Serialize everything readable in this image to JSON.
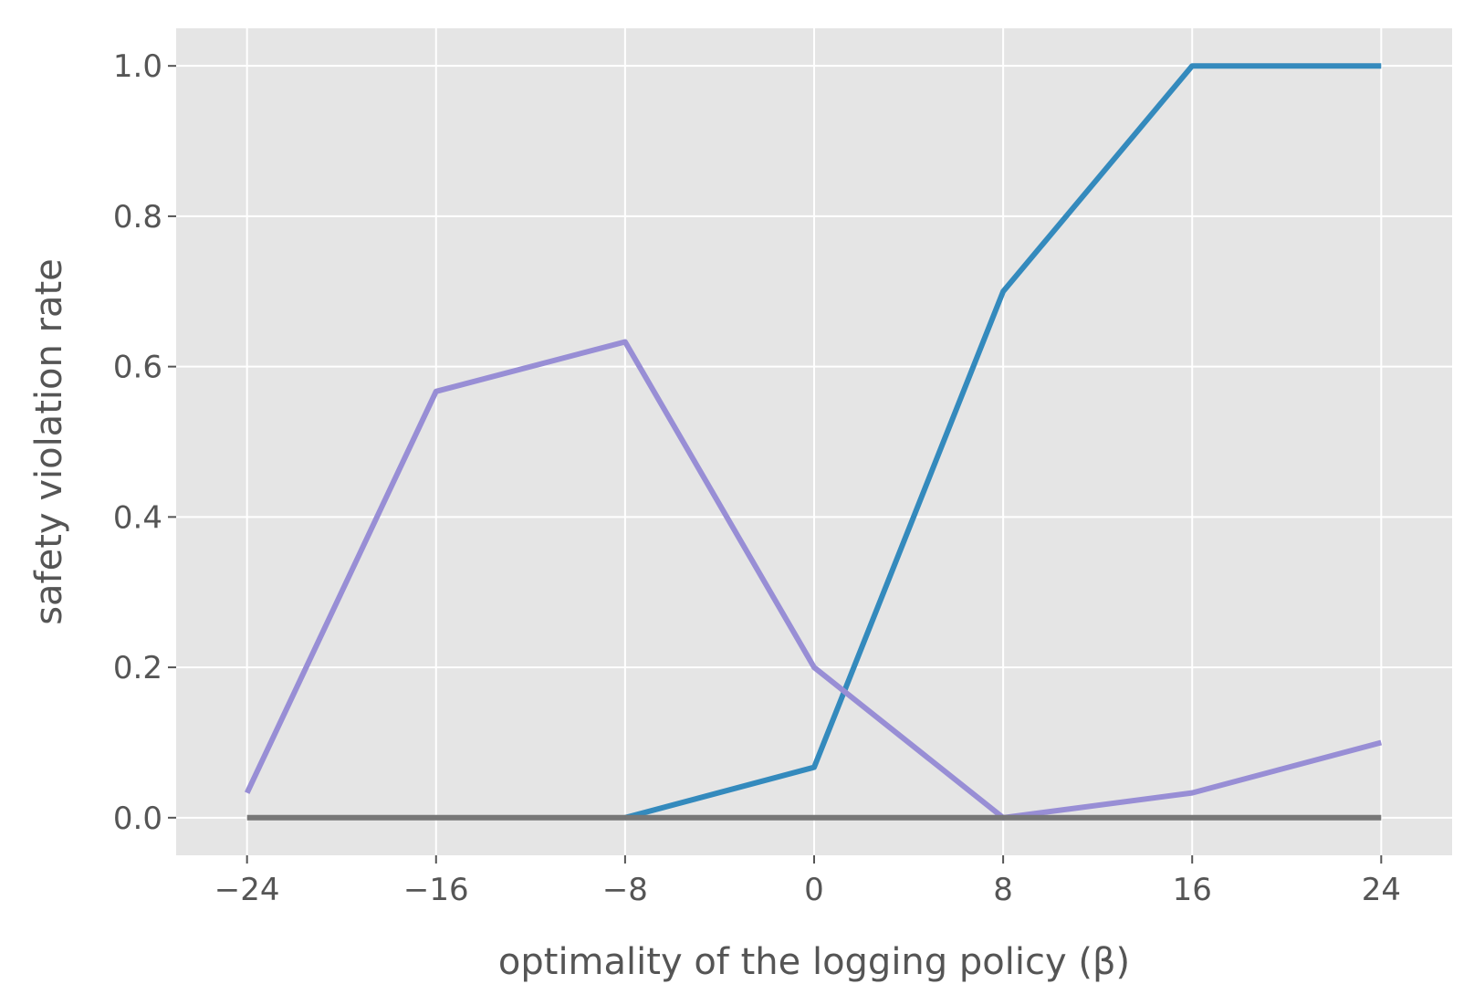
{
  "chart_data": {
    "type": "line",
    "title": "",
    "xlabel": "optimality of the logging policy (β)",
    "ylabel": "safety violation rate",
    "xlim": [
      -27,
      27
    ],
    "ylim": [
      -0.05,
      1.05
    ],
    "x_ticks": [
      -24,
      -16,
      -8,
      0,
      8,
      16,
      24
    ],
    "x_tick_labels": [
      "−24",
      "−16",
      "−8",
      "0",
      "8",
      "16",
      "24"
    ],
    "y_ticks": [
      0.0,
      0.2,
      0.4,
      0.6,
      0.8,
      1.0
    ],
    "y_tick_labels": [
      "0.0",
      "0.2",
      "0.4",
      "0.6",
      "0.8",
      "1.0"
    ],
    "grid": true,
    "background": "#e5e5e5",
    "x": [
      -24,
      -16,
      -8,
      0,
      8,
      16,
      24
    ],
    "series": [
      {
        "color": "#348abd",
        "values": [
          null,
          null,
          0.0,
          0.067,
          0.7,
          1.0,
          1.0
        ]
      },
      {
        "color": "#988ed5",
        "values": [
          0.033,
          0.567,
          0.633,
          0.2,
          0.0,
          0.033,
          0.1
        ]
      },
      {
        "color": "#777777",
        "values": [
          0.0,
          0.0,
          0.0,
          0.0,
          0.0,
          0.0,
          0.0
        ]
      }
    ]
  }
}
